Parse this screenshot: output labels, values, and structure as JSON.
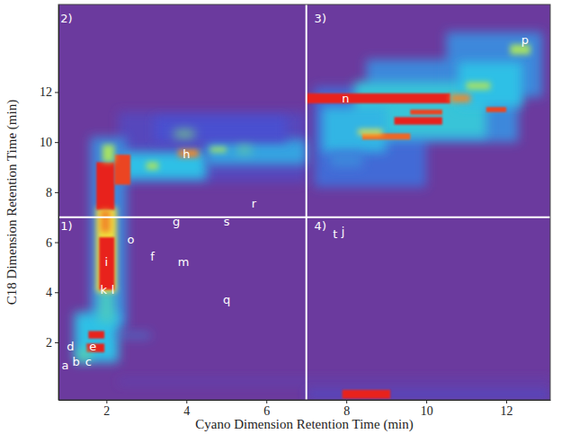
{
  "chart_data": {
    "type": "heatmap",
    "xlabel": "Cyano Dimension Retention Time (min)",
    "ylabel": "C18 Dimension Retention Time (min)",
    "xlim": [
      0.8,
      13.1
    ],
    "ylim": [
      -0.3,
      15.5
    ],
    "xticks": [
      2,
      4,
      6,
      8,
      10,
      12
    ],
    "yticks": [
      2,
      4,
      6,
      8,
      10,
      12
    ],
    "zlim": [
      0,
      1
    ],
    "x_lines": [
      7
    ],
    "y_lines": [
      7
    ],
    "cells": [
      {
        "x": [
          2.3,
          7.0
        ],
        "y": [
          8.4,
          11.2
        ],
        "z": 0.12
      },
      {
        "x": [
          7.2,
          10.0
        ],
        "y": [
          8.2,
          12.2
        ],
        "z": 0.25
      },
      {
        "x": [
          8.5,
          12.3
        ],
        "y": [
          10.0,
          13.3
        ],
        "z": 0.3
      },
      {
        "x": [
          10.5,
          12.9
        ],
        "y": [
          11.8,
          14.4
        ],
        "z": 0.3
      },
      {
        "x": [
          8.2,
          11.5
        ],
        "y": [
          10.2,
          12.4
        ],
        "z": 0.42
      },
      {
        "x": [
          7.4,
          9.0
        ],
        "y": [
          9.6,
          11.4
        ],
        "z": 0.38
      },
      {
        "x": [
          10.8,
          12.4
        ],
        "y": [
          11.4,
          13.2
        ],
        "z": 0.4
      },
      {
        "x": [
          1.6,
          2.5
        ],
        "y": [
          2.6,
          10.2
        ],
        "z": 0.3
      },
      {
        "x": [
          1.2,
          2.3
        ],
        "y": [
          1.2,
          3.2
        ],
        "z": 0.4
      },
      {
        "x": [
          2.2,
          3.1
        ],
        "y": [
          2.2,
          2.35
        ],
        "z": 0.3
      },
      {
        "x": [
          2.3,
          13.1
        ],
        "y": [
          0.35,
          0.5
        ],
        "z": 0.1
      },
      {
        "x": [
          7.0,
          13.1
        ],
        "y": [
          -0.2,
          0.05
        ],
        "z": 0.2
      },
      {
        "x": [
          2.4,
          4.5
        ],
        "y": [
          8.5,
          9.6
        ],
        "z": 0.4
      },
      {
        "x": [
          4.5,
          7.0
        ],
        "y": [
          9.1,
          10.1
        ],
        "z": 0.35
      },
      {
        "x": [
          3.2,
          6.5
        ],
        "y": [
          10.0,
          11.0
        ],
        "z": 0.2
      },
      {
        "x": [
          1.8,
          2.2
        ],
        "y": [
          2.8,
          4.1
        ],
        "z": 0.45
      },
      {
        "x": [
          1.75,
          2.25
        ],
        "y": [
          4.0,
          7.4
        ],
        "z": 0.7
      },
      {
        "x": [
          1.82,
          2.2
        ],
        "y": [
          4.1,
          6.2
        ],
        "z": 1
      },
      {
        "x": [
          1.75,
          2.2
        ],
        "y": [
          7.3,
          9.2
        ],
        "z": 1
      },
      {
        "x": [
          2.2,
          2.6
        ],
        "y": [
          8.3,
          9.5
        ],
        "z": 0.95
      },
      {
        "x": [
          1.85,
          2.1
        ],
        "y": [
          6.4,
          7.3
        ],
        "z": 0.85
      },
      {
        "x": [
          1.9,
          2.2
        ],
        "y": [
          9.2,
          9.9
        ],
        "z": 0.6
      },
      {
        "x": [
          1.55,
          1.95
        ],
        "y": [
          2.15,
          2.45
        ],
        "z": 1
      },
      {
        "x": [
          1.5,
          1.95
        ],
        "y": [
          1.6,
          1.95
        ],
        "z": 1
      },
      {
        "x": [
          1.3,
          1.6
        ],
        "y": [
          1.3,
          1.7
        ],
        "z": 0.5
      },
      {
        "x": [
          3.0,
          3.3
        ],
        "y": [
          8.9,
          9.2
        ],
        "z": 0.6
      },
      {
        "x": [
          3.8,
          4.3
        ],
        "y": [
          9.4,
          9.7
        ],
        "z": 0.85
      },
      {
        "x": [
          4.6,
          5.0
        ],
        "y": [
          9.6,
          9.8
        ],
        "z": 0.6
      },
      {
        "x": [
          5.3,
          5.6
        ],
        "y": [
          9.6,
          9.8
        ],
        "z": 0.55
      },
      {
        "x": [
          3.7,
          4.2
        ],
        "y": [
          10.2,
          10.45
        ],
        "z": 0.55
      },
      {
        "x": [
          7.0,
          10.6
        ],
        "y": [
          11.55,
          11.95
        ],
        "z": 1
      },
      {
        "x": [
          10.6,
          11.1
        ],
        "y": [
          11.6,
          11.9
        ],
        "z": 0.85
      },
      {
        "x": [
          9.2,
          10.4
        ],
        "y": [
          10.7,
          11.0
        ],
        "z": 1
      },
      {
        "x": [
          9.6,
          10.4
        ],
        "y": [
          11.1,
          11.3
        ],
        "z": 0.95
      },
      {
        "x": [
          8.4,
          9.6
        ],
        "y": [
          10.1,
          10.35
        ],
        "z": 0.9
      },
      {
        "x": [
          8.3,
          8.9
        ],
        "y": [
          10.3,
          10.5
        ],
        "z": 0.7
      },
      {
        "x": [
          11.5,
          12.0
        ],
        "y": [
          11.2,
          11.4
        ],
        "z": 0.95
      },
      {
        "x": [
          12.1,
          12.6
        ],
        "y": [
          13.5,
          13.9
        ],
        "z": 0.6
      },
      {
        "x": [
          11.0,
          11.6
        ],
        "y": [
          12.1,
          12.4
        ],
        "z": 0.6
      },
      {
        "x": [
          7.6,
          8.4
        ],
        "y": [
          9.0,
          9.6
        ],
        "z": 0.3
      },
      {
        "x": [
          7.9,
          9.1
        ],
        "y": [
          -0.25,
          0.1
        ],
        "z": 1
      }
    ],
    "annotations": [
      {
        "text": "1)",
        "x": 1.0,
        "y": 6.6
      },
      {
        "text": "2)",
        "x": 1.0,
        "y": 14.9
      },
      {
        "text": "3)",
        "x": 7.35,
        "y": 14.9
      },
      {
        "text": "4)",
        "x": 7.35,
        "y": 6.6
      },
      {
        "text": "a",
        "x": 0.97,
        "y": 1.04
      },
      {
        "text": "b",
        "x": 1.24,
        "y": 1.18
      },
      {
        "text": "c",
        "x": 1.55,
        "y": 1.18
      },
      {
        "text": "d",
        "x": 1.1,
        "y": 1.79
      },
      {
        "text": "e",
        "x": 1.66,
        "y": 1.79
      },
      {
        "text": "k",
        "x": 1.93,
        "y": 4.06
      },
      {
        "text": "l",
        "x": 2.16,
        "y": 4.06
      },
      {
        "text": "i",
        "x": 2.0,
        "y": 5.17
      },
      {
        "text": "o",
        "x": 2.61,
        "y": 6.09
      },
      {
        "text": "f",
        "x": 3.15,
        "y": 5.38
      },
      {
        "text": "m",
        "x": 3.93,
        "y": 5.17
      },
      {
        "text": "q",
        "x": 5.01,
        "y": 3.67
      },
      {
        "text": "g",
        "x": 3.75,
        "y": 6.8
      },
      {
        "text": "s",
        "x": 5.01,
        "y": 6.8
      },
      {
        "text": "r",
        "x": 5.69,
        "y": 7.5
      },
      {
        "text": "h",
        "x": 4.0,
        "y": 9.5
      },
      {
        "text": "n",
        "x": 7.98,
        "y": 11.7
      },
      {
        "text": "p",
        "x": 12.47,
        "y": 14.06
      },
      {
        "text": "t",
        "x": 7.72,
        "y": 6.3
      },
      {
        "text": "j",
        "x": 7.92,
        "y": 6.38
      }
    ]
  }
}
